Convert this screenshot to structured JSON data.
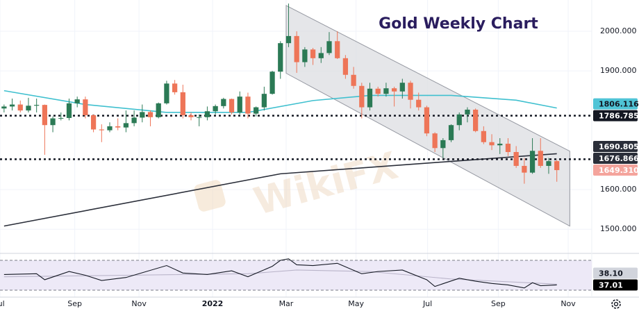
{
  "chart_data": {
    "type": "candlestick",
    "title": "Gold Weekly Chart",
    "watermark": "WikiFX",
    "up_color": "#2b7a55",
    "down_color": "#ee7558",
    "open": [
      1805,
      1810,
      1815,
      1800,
      1812,
      1814,
      1763,
      1780,
      1781,
      1818,
      1828,
      1788,
      1752,
      1750,
      1760,
      1757,
      1768,
      1782,
      1796,
      1783,
      1818,
      1868,
      1846,
      1788,
      1783,
      1783,
      1798,
      1811,
      1829,
      1795,
      1835,
      1792,
      1808,
      1842,
      1898,
      1970,
      1988,
      1922,
      1954,
      1932,
      1945,
      1975,
      1932,
      1890,
      1862,
      1808,
      1855,
      1842,
      1856,
      1848,
      1870,
      1827,
      1808,
      1742,
      1705,
      1725,
      1763,
      1790,
      1802,
      1748,
      1720,
      1712,
      1716,
      1695,
      1660,
      1643,
      1698,
      1660,
      1672
    ],
    "high": [
      1815,
      1830,
      1825,
      1832,
      1830,
      1815,
      1785,
      1795,
      1830,
      1835,
      1835,
      1790,
      1765,
      1770,
      1780,
      1800,
      1800,
      1815,
      1800,
      1820,
      1875,
      1877,
      1865,
      1795,
      1790,
      1810,
      1815,
      1832,
      1830,
      1848,
      1845,
      1810,
      1860,
      1900,
      1975,
      2070,
      2000,
      1960,
      1958,
      1960,
      1998,
      2000,
      1940,
      1910,
      1870,
      1870,
      1860,
      1870,
      1860,
      1880,
      1875,
      1845,
      1812,
      1745,
      1730,
      1765,
      1795,
      1808,
      1805,
      1760,
      1740,
      1730,
      1730,
      1710,
      1680,
      1730,
      1730,
      1680,
      1675
    ],
    "low": [
      1795,
      1800,
      1795,
      1795,
      1795,
      1688,
      1745,
      1775,
      1775,
      1808,
      1780,
      1745,
      1720,
      1745,
      1750,
      1745,
      1760,
      1770,
      1760,
      1780,
      1815,
      1840,
      1780,
      1775,
      1760,
      1775,
      1790,
      1805,
      1790,
      1790,
      1780,
      1785,
      1800,
      1840,
      1880,
      1960,
      1895,
      1910,
      1915,
      1920,
      1940,
      1930,
      1880,
      1855,
      1780,
      1800,
      1835,
      1835,
      1810,
      1830,
      1805,
      1800,
      1735,
      1695,
      1680,
      1720,
      1750,
      1770,
      1745,
      1715,
      1700,
      1690,
      1685,
      1655,
      1615,
      1640,
      1655,
      1640,
      1620
    ],
    "close": [
      1810,
      1815,
      1800,
      1812,
      1814,
      1763,
      1780,
      1781,
      1818,
      1828,
      1788,
      1752,
      1750,
      1760,
      1757,
      1768,
      1782,
      1796,
      1783,
      1818,
      1868,
      1846,
      1788,
      1783,
      1783,
      1798,
      1811,
      1829,
      1795,
      1835,
      1792,
      1808,
      1842,
      1898,
      1970,
      1988,
      1922,
      1954,
      1932,
      1945,
      1975,
      1932,
      1890,
      1862,
      1808,
      1855,
      1842,
      1856,
      1848,
      1870,
      1827,
      1808,
      1742,
      1705,
      1725,
      1763,
      1790,
      1802,
      1748,
      1720,
      1712,
      1716,
      1695,
      1660,
      1643,
      1698,
      1660,
      1672,
      1649.31
    ],
    "xlim": [
      -0.5,
      72.3
    ],
    "ylim": [
      1439,
      2079
    ],
    "grid": true,
    "xticks": [
      {
        "value": -0.5,
        "label": "Jul"
      },
      {
        "value": 8.7,
        "label": "Sep"
      },
      {
        "value": 16.6,
        "label": "Nov"
      },
      {
        "value": 25.65,
        "label": "2022"
      },
      {
        "value": 34.7,
        "label": "Mar"
      },
      {
        "value": 43.3,
        "label": "May"
      },
      {
        "value": 52.1,
        "label": "Jul"
      },
      {
        "value": 60.8,
        "label": "Sep"
      },
      {
        "value": 69.4,
        "label": "Nov"
      }
    ],
    "yticks": [
      {
        "value": 2000,
        "label": "2000.000"
      },
      {
        "value": 1900,
        "label": "1900.000"
      },
      {
        "value": 1600,
        "label": "1600.000"
      },
      {
        "value": 1500,
        "label": "1500.000"
      }
    ],
    "channel": {
      "x": [
        34.7,
        69.6
      ],
      "upper": [
        2065,
        1697
      ],
      "lower": [
        1894,
        1508
      ]
    },
    "lines": [
      {
        "color": "#3fc0cf",
        "x": [
          0,
          10,
          20,
          30,
          38,
          45,
          55,
          63,
          68
        ],
        "values": [
          1850,
          1815,
          1795,
          1795,
          1825,
          1838,
          1838,
          1826,
          1806.116
        ]
      },
      {
        "color": "#2a2e39",
        "x": [
          0,
          34,
          68
        ],
        "values": [
          1508,
          1640,
          1690.805
        ]
      }
    ],
    "markers": [
      {
        "value": 1806.116,
        "bg": "#4fc4d6",
        "fg": "#131722"
      },
      {
        "value": 1786.785,
        "bg": "#131722",
        "fg": "#ffffff",
        "dotted": true
      },
      {
        "value": 1690.805,
        "bg": "#2a2e39",
        "fg": "#ffffff"
      },
      {
        "value": 1676.866,
        "bg": "#2a2e39",
        "fg": "#ffffff",
        "dotted": true
      },
      {
        "value": 1649.31,
        "label": "1649.310",
        "bg": "#f4a49c",
        "fg": "#ffffff"
      }
    ],
    "rsi": {
      "ylim": [
        20.7,
        79.3
      ],
      "bands": [
        30,
        70
      ],
      "series": [
        {
          "color": "#131722",
          "x": [
            0,
            4,
            5,
            8,
            10,
            12,
            15,
            20,
            22,
            25,
            28,
            30,
            33,
            34,
            35,
            36,
            38,
            41,
            44,
            46,
            49,
            52,
            53,
            56,
            58,
            60,
            62,
            64,
            65,
            66,
            68
          ],
          "values": [
            51,
            52,
            44,
            55,
            50,
            43,
            47,
            63,
            53,
            51,
            56,
            48,
            62,
            70,
            72,
            64,
            63,
            66,
            52,
            55,
            57,
            44,
            35,
            46,
            42,
            39,
            37,
            33,
            40,
            36,
            37.01
          ]
        },
        {
          "color": "#b9b4c9",
          "x": [
            0,
            15,
            30,
            36,
            45,
            55,
            68
          ],
          "values": [
            48,
            50,
            52,
            57,
            55,
            45,
            38.1
          ]
        }
      ],
      "markers": [
        {
          "value": 38.1,
          "label": "38.10",
          "bg": "#d1d4dc",
          "fg": "#131722"
        },
        {
          "value": 37.01,
          "bg": "#000000",
          "fg": "#ffffff"
        }
      ]
    }
  }
}
